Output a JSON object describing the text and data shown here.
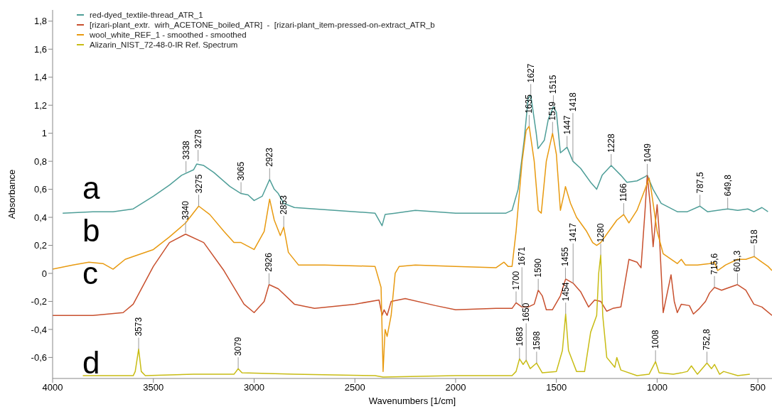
{
  "chart_data": {
    "type": "line",
    "xlabel": "Wavenumbers [1/cm]",
    "ylabel": "Absorbance",
    "legend": "top left",
    "marker": "none",
    "line_style": "solid",
    "grid": false,
    "xlim": [
      4000,
      430
    ],
    "xticks": [
      4000,
      3500,
      3000,
      2500,
      2000,
      1500,
      1000,
      500
    ],
    "ylim": [
      -0.75,
      1.88
    ],
    "yticks": [
      {
        "value": -0.6,
        "label": "-0,6"
      },
      {
        "value": -0.4,
        "label": "-0,4"
      },
      {
        "value": -0.2,
        "label": "-0,2"
      },
      0,
      {
        "value": 0.2,
        "label": "0,2"
      },
      {
        "value": 0.4,
        "label": "0,4"
      },
      {
        "value": 0.6,
        "label": "0,6"
      },
      {
        "value": 0.8,
        "label": "0,8"
      },
      1,
      {
        "value": 1.2,
        "label": "1,2"
      },
      {
        "value": 1.4,
        "label": "1,4"
      },
      {
        "value": 1.6,
        "label": "1,6"
      },
      {
        "value": 1.8,
        "label": "1,8"
      }
    ],
    "series": [
      {
        "name": "red-dyed_textile-thread_ATR_1",
        "color": "#4e9e98",
        "x": [
          3950,
          3800,
          3700,
          3600,
          3500,
          3420,
          3360,
          3300,
          3285,
          3250,
          3200,
          3120,
          3065,
          3030,
          3000,
          2960,
          2923,
          2900,
          2880,
          2853,
          2800,
          2600,
          2400,
          2365,
          2350,
          2300,
          2200,
          2000,
          1800,
          1750,
          1720,
          1690,
          1660,
          1640,
          1627,
          1600,
          1591,
          1560,
          1540,
          1515,
          1500,
          1480,
          1447,
          1418,
          1380,
          1330,
          1300,
          1273,
          1228,
          1180,
          1150,
          1100,
          1060,
          1049,
          1020,
          980,
          900,
          850,
          787.5,
          750,
          649.8,
          600,
          550,
          520,
          480,
          450
        ],
        "values": [
          0.43,
          0.44,
          0.44,
          0.46,
          0.55,
          0.63,
          0.7,
          0.74,
          0.78,
          0.77,
          0.72,
          0.62,
          0.57,
          0.56,
          0.52,
          0.55,
          0.67,
          0.6,
          0.57,
          0.5,
          0.47,
          0.45,
          0.43,
          0.34,
          0.42,
          0.43,
          0.45,
          0.43,
          0.43,
          0.43,
          0.45,
          0.6,
          0.95,
          1.25,
          1.27,
          1.0,
          0.89,
          0.95,
          1.1,
          1.19,
          1.15,
          0.86,
          0.9,
          0.8,
          0.75,
          0.65,
          0.6,
          0.7,
          0.77,
          0.7,
          0.65,
          0.66,
          0.69,
          0.7,
          0.6,
          0.5,
          0.44,
          0.44,
          0.48,
          0.44,
          0.46,
          0.45,
          0.46,
          0.44,
          0.47,
          0.44
        ]
      },
      {
        "name": "[rizari-plant_extr.  wirh_ACETONE_boiled_ATR]  -  [rizari-plant_item-pressed-on-extract_ATR_b",
        "color": "#c8502e",
        "x": [
          4000,
          3800,
          3650,
          3600,
          3500,
          3420,
          3340,
          3250,
          3150,
          3050,
          3000,
          2950,
          2926,
          2880,
          2800,
          2700,
          2500,
          2380,
          2365,
          2355,
          2340,
          2320,
          2250,
          2100,
          2000,
          1800,
          1720,
          1700,
          1671,
          1640,
          1610,
          1590,
          1570,
          1550,
          1520,
          1480,
          1454,
          1417,
          1380,
          1340,
          1310,
          1280,
          1250,
          1220,
          1180,
          1140,
          1100,
          1080,
          1060,
          1049,
          1035,
          1020,
          1000,
          990,
          970,
          931,
          915,
          900,
          880,
          840,
          820,
          790,
          760,
          740,
          715.6,
          680,
          601.3,
          560,
          520,
          480,
          430
        ],
        "values": [
          -0.3,
          -0.3,
          -0.28,
          -0.22,
          0.05,
          0.22,
          0.28,
          0.22,
          0.02,
          -0.22,
          -0.28,
          -0.2,
          -0.08,
          -0.11,
          -0.22,
          -0.25,
          -0.22,
          -0.19,
          -0.3,
          -0.26,
          -0.3,
          -0.2,
          -0.18,
          -0.23,
          -0.26,
          -0.25,
          -0.25,
          -0.21,
          -0.24,
          -0.24,
          -0.22,
          -0.12,
          -0.16,
          -0.26,
          -0.26,
          -0.16,
          -0.04,
          -0.07,
          -0.13,
          -0.24,
          -0.19,
          -0.2,
          -0.27,
          -0.25,
          -0.24,
          0.1,
          0.08,
          0.04,
          0.45,
          0.7,
          0.5,
          0.19,
          0.49,
          0.3,
          -0.28,
          -0.01,
          -0.2,
          -0.28,
          -0.22,
          -0.23,
          -0.29,
          -0.25,
          -0.2,
          -0.14,
          -0.1,
          -0.12,
          -0.08,
          -0.12,
          -0.22,
          -0.24,
          -0.3
        ]
      },
      {
        "name": "wool_white_REF_1 - smoothed - smoothed",
        "color": "#e89a10",
        "x": [
          4000,
          3900,
          3820,
          3750,
          3700,
          3640,
          3600,
          3500,
          3420,
          3340,
          3275,
          3220,
          3150,
          3100,
          3065,
          3000,
          2950,
          2923,
          2900,
          2870,
          2853,
          2830,
          2780,
          2650,
          2400,
          2370,
          2360,
          2350,
          2340,
          2320,
          2300,
          2280,
          2200,
          2000,
          1800,
          1760,
          1740,
          1720,
          1700,
          1670,
          1650,
          1635,
          1610,
          1590,
          1575,
          1550,
          1519,
          1500,
          1480,
          1460,
          1455,
          1430,
          1400,
          1350,
          1320,
          1300,
          1280,
          1250,
          1200,
          1166,
          1140,
          1100,
          1060,
          1040,
          1030,
          1000,
          970,
          900,
          880,
          860,
          800,
          740,
          715.6,
          700,
          660,
          601.3,
          580,
          560,
          518,
          480,
          450,
          430
        ],
        "values": [
          0.03,
          0.06,
          0.08,
          0.07,
          0.03,
          0.1,
          0.12,
          0.17,
          0.26,
          0.36,
          0.48,
          0.42,
          0.3,
          0.22,
          0.22,
          0.17,
          0.3,
          0.53,
          0.38,
          0.27,
          0.33,
          0.15,
          0.06,
          0.06,
          0.05,
          -0.1,
          -0.7,
          -0.4,
          -0.45,
          -0.3,
          0.0,
          0.05,
          0.06,
          0.05,
          0.04,
          0.08,
          0.05,
          0.05,
          0.3,
          0.8,
          1.02,
          1.05,
          0.8,
          0.45,
          0.43,
          0.8,
          1.0,
          0.85,
          0.45,
          0.58,
          0.62,
          0.5,
          0.4,
          0.3,
          0.22,
          0.2,
          0.22,
          0.28,
          0.38,
          0.42,
          0.36,
          0.45,
          0.6,
          0.68,
          0.6,
          0.3,
          0.14,
          0.07,
          0.1,
          0.06,
          0.06,
          0.07,
          0.08,
          0.02,
          0.06,
          0.1,
          0.1,
          0.1,
          0.12,
          0.08,
          0.05,
          0.02
        ]
      },
      {
        "name": "Alizarin_NIST_72-48-0-IR Ref. Spectrum",
        "color": "#c8bc14",
        "x": [
          3850,
          3600,
          3590,
          3573,
          3560,
          3540,
          3300,
          3100,
          3079,
          3060,
          2800,
          2400,
          2360,
          2000,
          1720,
          1700,
          1683,
          1665,
          1650,
          1630,
          1598,
          1570,
          1500,
          1470,
          1454,
          1440,
          1400,
          1360,
          1330,
          1300,
          1290,
          1280,
          1270,
          1250,
          1210,
          1200,
          1180,
          1100,
          1040,
          1008,
          990,
          920,
          880,
          850,
          830,
          800,
          752.8,
          730,
          715,
          690,
          670,
          600,
          540
        ],
        "values": [
          -0.73,
          -0.73,
          -0.7,
          -0.54,
          -0.7,
          -0.73,
          -0.72,
          -0.72,
          -0.68,
          -0.71,
          -0.72,
          -0.73,
          -0.74,
          -0.73,
          -0.73,
          -0.7,
          -0.61,
          -0.65,
          -0.62,
          -0.68,
          -0.64,
          -0.71,
          -0.7,
          -0.55,
          -0.29,
          -0.55,
          -0.7,
          -0.7,
          -0.42,
          -0.3,
          0.0,
          0.13,
          -0.3,
          -0.6,
          -0.67,
          -0.6,
          -0.69,
          -0.73,
          -0.72,
          -0.63,
          -0.71,
          -0.72,
          -0.71,
          -0.7,
          -0.66,
          -0.72,
          -0.64,
          -0.68,
          -0.65,
          -0.72,
          -0.7,
          -0.73,
          -0.72
        ]
      }
    ],
    "annotations": [
      "a",
      "b",
      "c",
      "d",
      {
        "text": "3338",
        "x": 3338,
        "y": 0.72
      },
      {
        "text": "3278",
        "x": 3278,
        "y": 0.8
      },
      {
        "text": "3065",
        "x": 3065,
        "y": 0.57
      },
      {
        "text": "2923",
        "x": 2923,
        "y": 0.67
      },
      {
        "text": "3275",
        "x": 3275,
        "y": 0.48
      },
      {
        "text": "2853",
        "x": 2853,
        "y": 0.33
      },
      {
        "text": "3340",
        "x": 3340,
        "y": 0.29
      },
      {
        "text": "2926",
        "x": 2926,
        "y": -0.08
      },
      {
        "text": "3573",
        "x": 3573,
        "y": -0.54
      },
      {
        "text": "3079",
        "x": 3079,
        "y": -0.68
      },
      {
        "text": "1627",
        "x": 1627,
        "y": 1.27
      },
      {
        "text": "1635",
        "x": 1635,
        "y": 1.05
      },
      {
        "text": "1515",
        "x": 1515,
        "y": 1.19
      },
      {
        "text": "1519",
        "x": 1519,
        "y": 1.0
      },
      {
        "text": "1447",
        "x": 1447,
        "y": 0.9
      },
      {
        "text": "1418",
        "x": 1418,
        "y": 0.8
      },
      {
        "text": "1228",
        "x": 1228,
        "y": 0.77
      },
      {
        "text": "1049",
        "x": 1049,
        "y": 0.7
      },
      {
        "text": "1166",
        "x": 1166,
        "y": 0.42
      },
      {
        "text": "787,5",
        "x": 787.5,
        "y": 0.48
      },
      {
        "text": "649,8",
        "x": 649.8,
        "y": 0.46
      },
      {
        "text": "518",
        "x": 518,
        "y": 0.12
      },
      {
        "text": "1280",
        "x": 1280,
        "y": 0.13
      },
      {
        "text": "715,6",
        "x": 715.6,
        "y": -0.1
      },
      {
        "text": "601,3",
        "x": 601.3,
        "y": -0.08
      },
      {
        "text": "1700",
        "x": 1700,
        "y": -0.21
      },
      {
        "text": "1671",
        "x": 1671,
        "y": -0.24
      },
      {
        "text": "1590",
        "x": 1590,
        "y": -0.12
      },
      {
        "text": "1455",
        "x": 1455,
        "y": -0.04
      },
      {
        "text": "1417",
        "x": 1417,
        "y": -0.07
      },
      {
        "text": "1454",
        "x": 1454,
        "y": -0.29
      },
      {
        "text": "1683",
        "x": 1683,
        "y": -0.61
      },
      {
        "text": "1650",
        "x": 1650,
        "y": -0.62
      },
      {
        "text": "1598",
        "x": 1598,
        "y": -0.64
      },
      {
        "text": "1008",
        "x": 1008,
        "y": -0.63
      },
      {
        "text": "752,8",
        "x": 752.8,
        "y": -0.64
      }
    ]
  }
}
